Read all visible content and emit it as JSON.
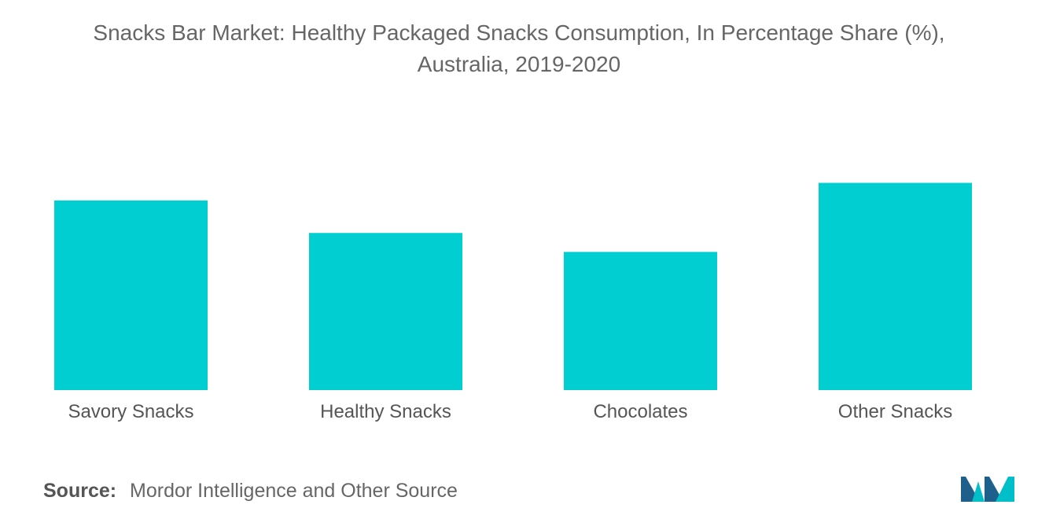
{
  "chart_data": {
    "type": "bar",
    "title": "Snacks Bar Market: Healthy Packaged Snacks Consumption, In Percentage Share (%),",
    "subtitle": "Australia, 2019-2020",
    "categories": [
      "Savory Snacks",
      "Healthy Snacks",
      "Chocolates",
      "Other Snacks"
    ],
    "values": [
      28,
      23.2,
      20.4,
      30.6
    ],
    "ylim": [
      0,
      36
    ],
    "grid": false,
    "legend": "none",
    "bar_color": "#00CED1"
  },
  "source": {
    "label": "Source:",
    "text": "Mordor Intelligence and Other Source"
  },
  "logo": {
    "icon": "mordor-intelligence-logo",
    "colors": [
      "#1F5F8B",
      "#00BFC8"
    ]
  }
}
